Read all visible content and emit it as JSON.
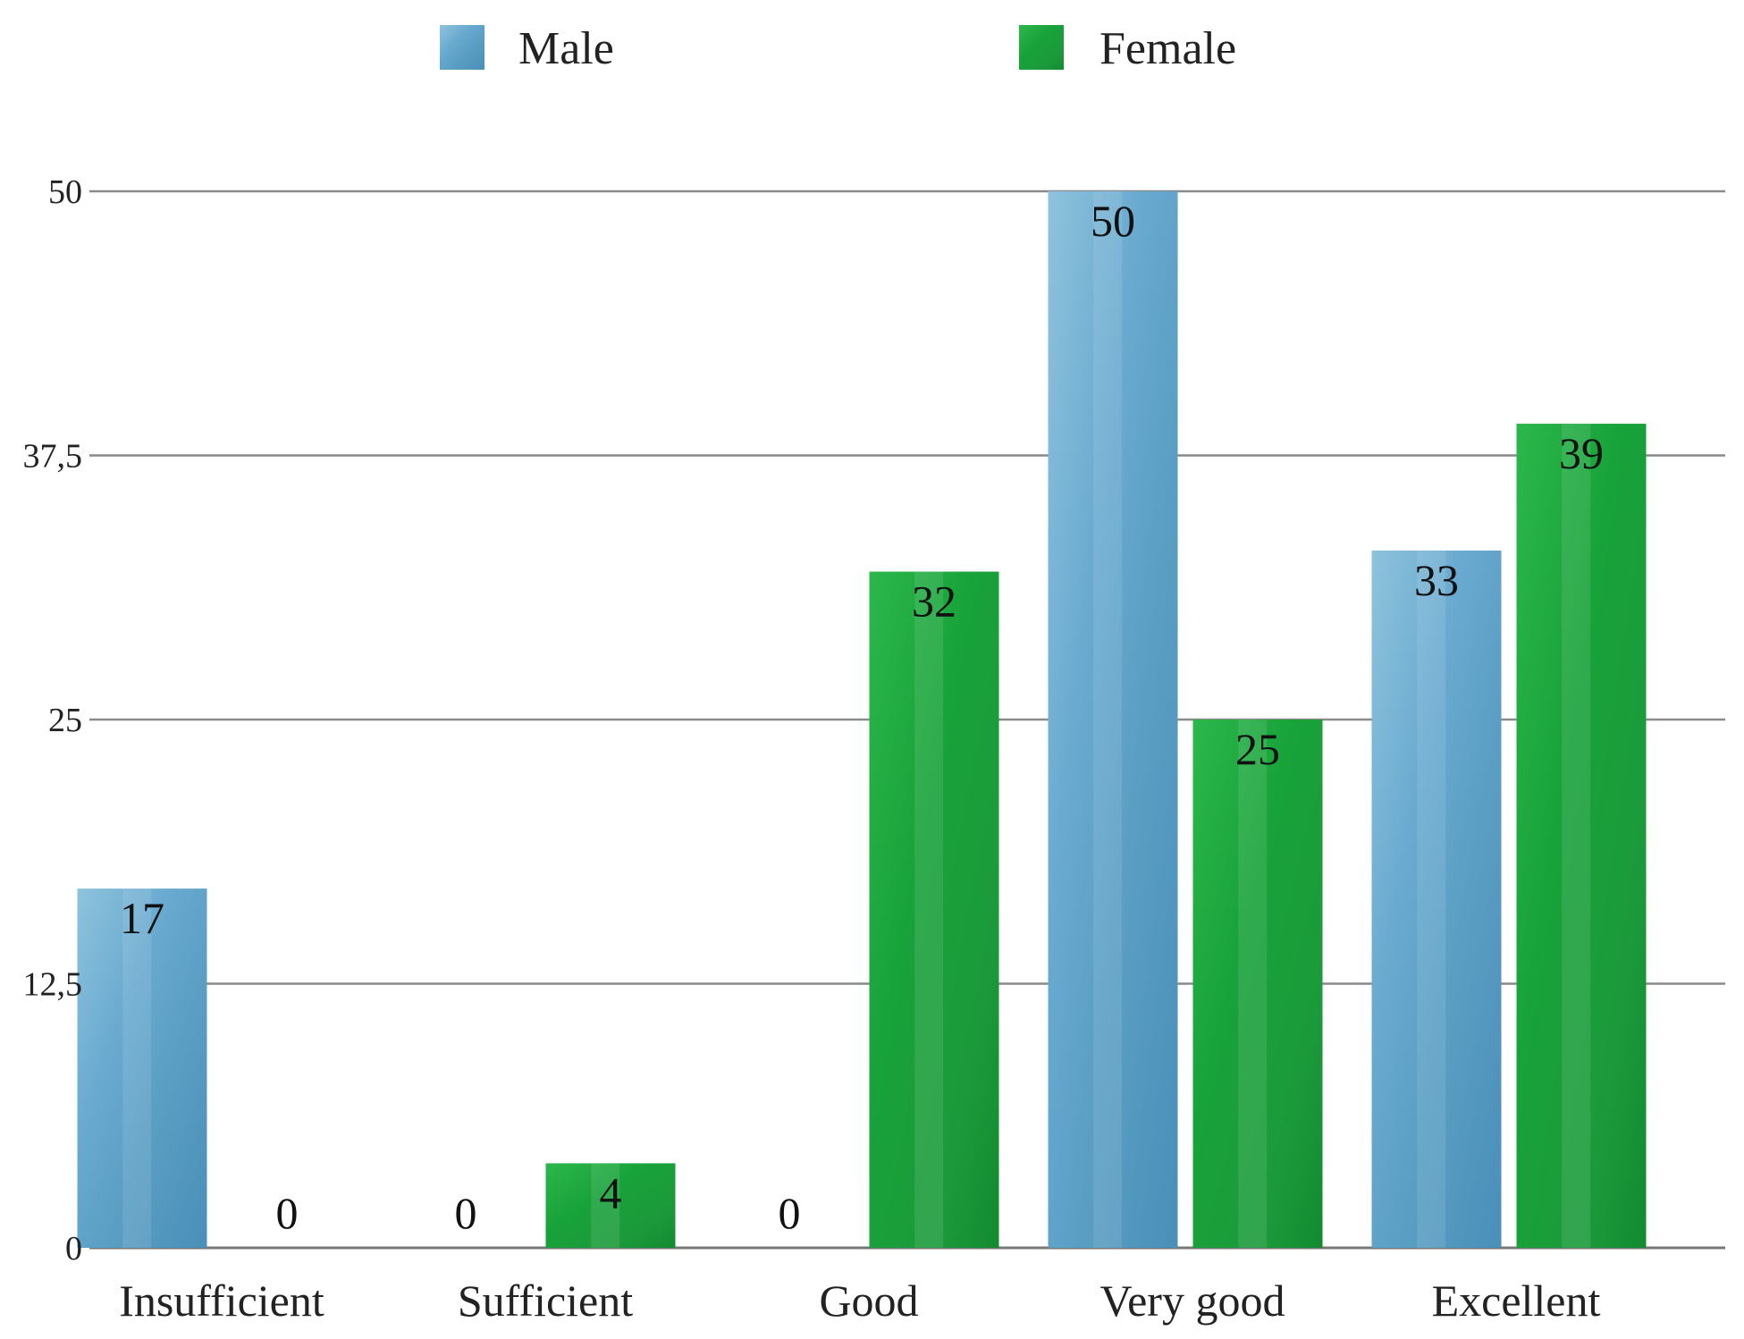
{
  "chart_data": {
    "type": "bar",
    "title": "",
    "xlabel": "",
    "ylabel": "",
    "categories": [
      "Insufficient",
      "Sufficient",
      "Good",
      "Very good",
      "Excellent"
    ],
    "series": [
      {
        "name": "Male",
        "values": [
          17,
          0,
          0,
          50,
          33
        ],
        "color": "#5b9fc4"
      },
      {
        "name": "Female",
        "values": [
          0,
          4,
          32,
          25,
          39
        ],
        "color": "#18a23a"
      }
    ],
    "ylim": [
      0,
      50
    ],
    "yticks": [
      0,
      12.5,
      25,
      37.5,
      50
    ],
    "ytick_labels": [
      "0",
      "12,5",
      "25",
      "37,5",
      "50"
    ],
    "grid": true,
    "legend_position": "top"
  }
}
